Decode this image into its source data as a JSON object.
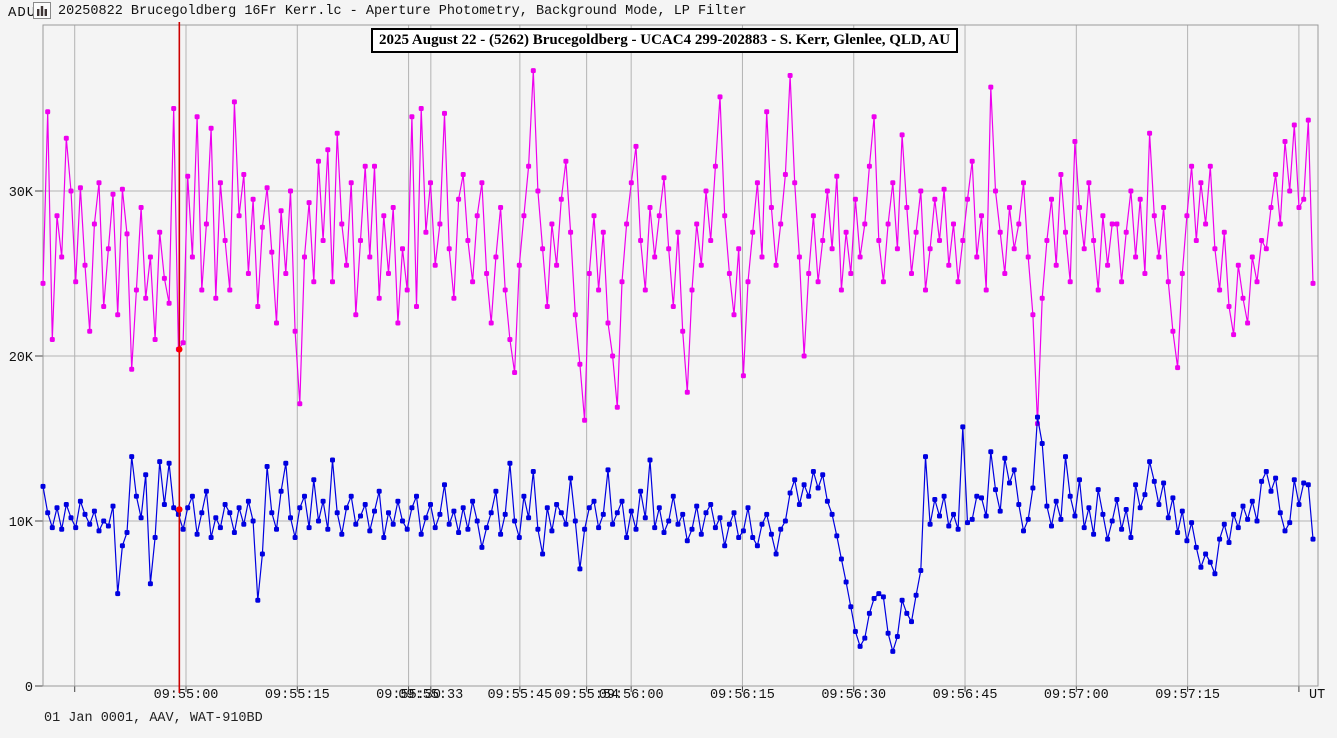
{
  "window": {
    "yaxis_unit": "ADU",
    "icon": "light-curve-window-icon",
    "title": "20250822 Brucegoldberg 16Fr Kerr.lc - Aperture Photometry, Background Mode, LP Filter"
  },
  "chart_title": "2025 August 22 - (5262) Brucegoldberg - UCAC4 299-202883 - S. Kerr, Glenlee, QLD, AU",
  "footer": "01 Jan 0001, AAV, WAT-910BD",
  "xaxis_unit_label": "UT",
  "colors": {
    "background": "#f4f4f4",
    "grid": "#b3b3b3",
    "border": "#9a9a9a",
    "tick": "#444444",
    "target_series": "#ee00ee",
    "comparison_series": "#0000e0",
    "cursor_line": "#cc0000",
    "cursor_dot": "#ff0000",
    "text": "#111111"
  },
  "chart_data": {
    "type": "line",
    "title": "2025 August 22 - (5262) Brucegoldberg - UCAC4 299-202883 - S. Kerr, Glenlee, QLD, AU",
    "ylabel": "ADU",
    "xlabel": "UT",
    "unit": "kADU",
    "ylim_kadu": [
      0,
      40
    ],
    "x_window": [
      "09:54:41",
      "09:57:33"
    ],
    "grid": true,
    "y_ticks": [
      {
        "v": 0,
        "label": "0"
      },
      {
        "v": 10,
        "label": "10K"
      },
      {
        "v": 20,
        "label": "20K"
      },
      {
        "v": 30,
        "label": "30K"
      }
    ],
    "x_ticks": [
      {
        "t": -15,
        "label": ""
      },
      {
        "t": 0,
        "label": "09:55:00"
      },
      {
        "t": 15,
        "label": "09:55:15"
      },
      {
        "t": 30,
        "label": "09:55:30"
      },
      {
        "t": 33,
        "label": "09:55:33"
      },
      {
        "t": 45,
        "label": "09:55:45"
      },
      {
        "t": 54,
        "label": "09:55:54"
      },
      {
        "t": 60,
        "label": "09:56:00"
      },
      {
        "t": 75,
        "label": "09:56:15"
      },
      {
        "t": 90,
        "label": "09:56:30"
      },
      {
        "t": 105,
        "label": "09:56:45"
      },
      {
        "t": 120,
        "label": "09:57:00"
      },
      {
        "t": 135,
        "label": "09:57:15"
      },
      {
        "t": 150,
        "label": ""
      }
    ],
    "cursor": {
      "time_offset_s": -0.9,
      "marked_target_kadu": 20.4,
      "marked_comparison_kadu": 10.7
    },
    "series": [
      {
        "name": "target",
        "color": "#ee00ee",
        "values_kadu": [
          24.4,
          34.8,
          21.0,
          28.5,
          26.0,
          33.2,
          30.0,
          24.5,
          30.2,
          25.5,
          21.5,
          28.0,
          30.5,
          23.0,
          26.5,
          29.8,
          22.5,
          30.1,
          27.4,
          19.2,
          24.0,
          29.0,
          23.5,
          26.0,
          21.0,
          27.5,
          24.7,
          23.2,
          35.0,
          20.4,
          20.8,
          30.9,
          26.0,
          34.5,
          24.0,
          28.0,
          33.8,
          23.5,
          30.5,
          27.0,
          24.0,
          35.4,
          28.5,
          31.0,
          25.0,
          29.5,
          23.0,
          27.8,
          30.2,
          26.3,
          22.0,
          28.8,
          25.0,
          30.0,
          21.5,
          17.1,
          26.0,
          29.3,
          24.5,
          31.8,
          27.0,
          32.5,
          24.5,
          33.5,
          28.0,
          25.5,
          30.5,
          22.5,
          27.0,
          31.5,
          26.0,
          31.5,
          23.5,
          28.5,
          25.0,
          29.0,
          22.0,
          26.5,
          24.0,
          34.5,
          23.0,
          35.0,
          27.5,
          30.5,
          25.5,
          28.0,
          34.7,
          26.5,
          23.5,
          29.5,
          31.0,
          27.0,
          24.5,
          28.5,
          30.5,
          25.0,
          22.0,
          26.0,
          29.0,
          24.0,
          21.0,
          19.0,
          25.5,
          28.5,
          31.5,
          37.3,
          30.0,
          26.5,
          23.0,
          28.0,
          25.5,
          29.5,
          31.8,
          27.5,
          22.5,
          19.5,
          16.1,
          25.0,
          28.5,
          24.0,
          27.5,
          22.0,
          20.0,
          16.9,
          24.5,
          28.0,
          30.5,
          32.7,
          27.0,
          24.0,
          29.0,
          26.0,
          28.5,
          30.8,
          26.5,
          23.0,
          27.5,
          21.5,
          17.8,
          24.0,
          28.0,
          25.5,
          30.0,
          27.0,
          31.5,
          35.7,
          28.5,
          25.0,
          22.5,
          26.5,
          18.8,
          24.5,
          27.5,
          30.5,
          26.0,
          34.8,
          29.0,
          25.5,
          28.0,
          31.0,
          37.0,
          30.5,
          26.0,
          20.0,
          25.0,
          28.5,
          24.5,
          27.0,
          30.0,
          26.5,
          30.9,
          24.0,
          27.5,
          25.0,
          29.5,
          26.0,
          28.0,
          31.5,
          34.5,
          27.0,
          24.5,
          28.0,
          30.5,
          26.5,
          33.4,
          29.0,
          25.0,
          27.5,
          30.0,
          24.0,
          26.5,
          29.5,
          27.0,
          30.1,
          25.5,
          28.0,
          24.5,
          27.0,
          29.5,
          31.8,
          26.0,
          28.5,
          24.0,
          36.3,
          30.0,
          27.5,
          25.0,
          29.0,
          26.5,
          28.0,
          30.5,
          26.0,
          22.5,
          15.9,
          23.5,
          27.0,
          29.5,
          25.5,
          31.0,
          27.5,
          24.5,
          33.0,
          29.0,
          26.5,
          30.5,
          27.0,
          24.0,
          28.5,
          25.5,
          28.0,
          28.0,
          24.5,
          27.5,
          30.0,
          26.0,
          29.5,
          25.0,
          33.5,
          28.5,
          26.0,
          29.0,
          24.5,
          21.5,
          19.3,
          25.0,
          28.5,
          31.5,
          27.0,
          30.5,
          28.0,
          31.5,
          26.5,
          24.0,
          27.5,
          23.0,
          21.3,
          25.5,
          23.5,
          22.0,
          26.0,
          24.5,
          27.0,
          26.5,
          29.0,
          31.0,
          28.0,
          33.0,
          30.0,
          34.0,
          29.0,
          29.5,
          34.3,
          24.4
        ]
      },
      {
        "name": "comparison",
        "color": "#0000e0",
        "values_kadu": [
          12.1,
          10.5,
          9.6,
          10.8,
          9.5,
          11.0,
          10.2,
          9.6,
          11.2,
          10.4,
          9.8,
          10.6,
          9.4,
          10.0,
          9.7,
          10.9,
          5.6,
          8.5,
          9.3,
          13.9,
          11.5,
          10.2,
          12.8,
          6.2,
          9.0,
          13.6,
          11.0,
          13.5,
          10.8,
          10.4,
          9.5,
          10.8,
          11.5,
          9.2,
          10.5,
          11.8,
          9.0,
          10.2,
          9.6,
          11.0,
          10.5,
          9.3,
          10.8,
          9.8,
          11.2,
          10.0,
          5.2,
          8.0,
          13.3,
          10.5,
          9.5,
          11.8,
          13.5,
          10.2,
          9.0,
          10.8,
          11.5,
          9.6,
          12.5,
          10.0,
          11.2,
          9.5,
          13.7,
          10.5,
          9.2,
          10.8,
          11.5,
          9.8,
          10.3,
          11.0,
          9.4,
          10.6,
          11.8,
          9.0,
          10.5,
          9.8,
          11.2,
          10.0,
          9.5,
          10.8,
          11.5,
          9.2,
          10.2,
          11.0,
          9.6,
          10.4,
          12.2,
          9.8,
          10.6,
          9.3,
          10.8,
          9.5,
          11.2,
          10.0,
          8.4,
          9.6,
          10.5,
          11.8,
          9.2,
          10.4,
          13.5,
          10.0,
          9.0,
          11.5,
          10.2,
          13.0,
          9.5,
          8.0,
          10.8,
          9.4,
          11.0,
          10.5,
          9.8,
          12.6,
          10.0,
          7.1,
          9.5,
          10.8,
          11.2,
          9.6,
          10.4,
          13.1,
          9.8,
          10.5,
          11.2,
          9.0,
          10.6,
          9.5,
          11.8,
          10.2,
          13.7,
          9.6,
          10.8,
          9.3,
          10.0,
          11.5,
          9.8,
          10.4,
          8.8,
          9.5,
          10.9,
          9.2,
          10.5,
          11.0,
          9.6,
          10.2,
          8.5,
          9.8,
          10.5,
          9.0,
          9.4,
          10.8,
          9.0,
          8.5,
          9.8,
          10.4,
          9.2,
          8.0,
          9.5,
          10.0,
          11.7,
          12.5,
          11.0,
          12.2,
          11.5,
          13.0,
          12.0,
          12.8,
          11.2,
          10.4,
          9.1,
          7.7,
          6.3,
          4.8,
          3.3,
          2.4,
          2.9,
          4.4,
          5.3,
          5.6,
          5.4,
          3.2,
          2.1,
          3.0,
          5.2,
          4.4,
          3.9,
          5.5,
          7.0,
          13.9,
          9.8,
          11.3,
          10.3,
          11.5,
          9.7,
          10.4,
          9.5,
          15.7,
          9.9,
          10.1,
          11.5,
          11.4,
          10.3,
          14.2,
          11.9,
          10.6,
          13.8,
          12.3,
          13.1,
          11.0,
          9.4,
          10.1,
          12.0,
          16.3,
          14.7,
          10.9,
          9.7,
          11.2,
          10.1,
          13.9,
          11.5,
          10.3,
          12.5,
          9.6,
          10.8,
          9.2,
          11.9,
          10.4,
          8.9,
          10.0,
          11.3,
          9.5,
          10.7,
          9.0,
          12.2,
          10.8,
          11.6,
          13.6,
          12.4,
          11.0,
          12.3,
          10.2,
          11.4,
          9.3,
          10.6,
          8.8,
          9.9,
          8.4,
          7.2,
          8.0,
          7.5,
          6.8,
          8.9,
          9.8,
          8.7,
          10.4,
          9.6,
          10.9,
          10.1,
          11.2,
          10.0,
          12.4,
          13.0,
          11.8,
          12.6,
          10.5,
          9.4,
          9.9,
          12.5,
          11.0,
          12.3,
          12.2,
          8.9
        ]
      }
    ]
  }
}
